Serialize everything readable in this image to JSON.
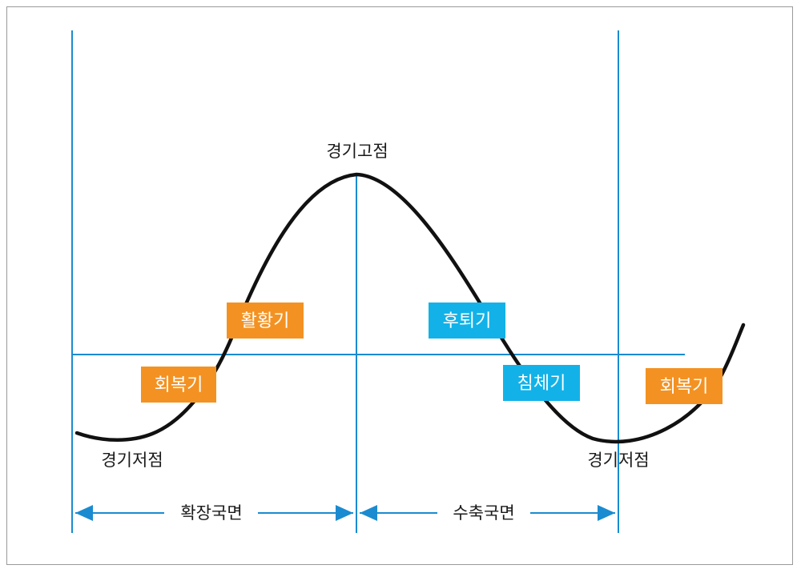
{
  "labels": {
    "peak": "경기고점",
    "trough_left": "경기저점",
    "trough_right": "경기저점"
  },
  "phases": {
    "recovery_left": "회복기",
    "boom": "활황기",
    "recession": "후퇴기",
    "depression": "침체기",
    "recovery_right": "회복기"
  },
  "sections": {
    "expansion": "확장국면",
    "contraction": "수축국면"
  },
  "colors": {
    "orange": "#f39222",
    "cyan": "#12b2e8",
    "line_blue": "#1a8bd0",
    "curve": "#111111"
  }
}
